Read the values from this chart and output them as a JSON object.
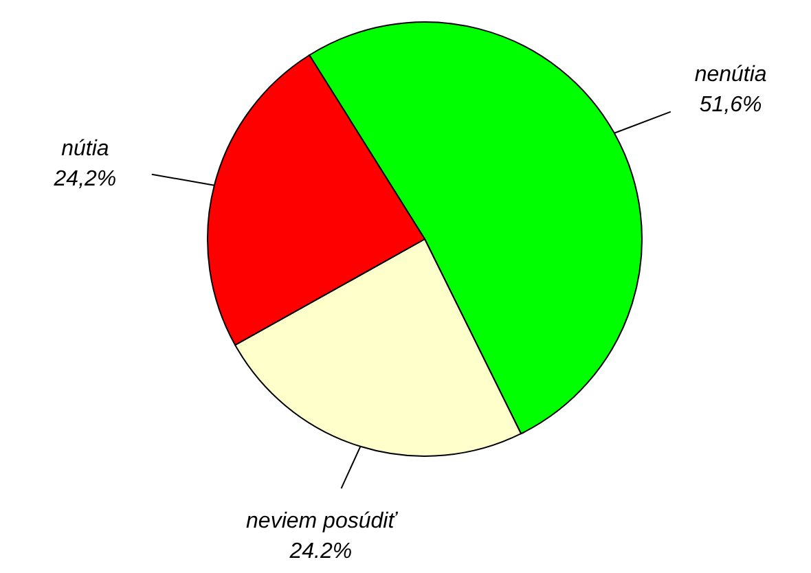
{
  "chart_data": {
    "type": "pie",
    "categories": [
      "nenútia",
      "neviem posúdiť",
      "nútia"
    ],
    "values": [
      51.6,
      24.2,
      24.2
    ],
    "colors": [
      "#00ff00",
      "#ffffcc",
      "#ff0000"
    ],
    "value_labels": [
      "51,6%",
      "24.2%",
      "24,2%"
    ]
  }
}
